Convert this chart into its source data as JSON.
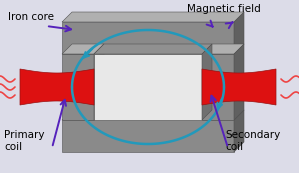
{
  "bg_color": "#dcdce8",
  "iron_front": "#8a8a8a",
  "iron_top": "#b0b0b0",
  "iron_right": "#606060",
  "iron_edge": "#505050",
  "hole_inner_top": "#a0a0a0",
  "hole_inner_right": "#505050",
  "coil_color": "#dd1111",
  "coil_edge": "#991111",
  "coil_wire": "#ee4444",
  "field_color": "#2299bb",
  "arrow_color": "#5522bb",
  "text_color": "#000000",
  "labels": {
    "iron_core": "Iron core",
    "magnetic_field": "Magnetic field",
    "primary_coil": "Primary\ncoil",
    "secondary_coil": "Secondary\ncoil"
  },
  "figsize": [
    2.99,
    1.73
  ],
  "dpi": 100
}
